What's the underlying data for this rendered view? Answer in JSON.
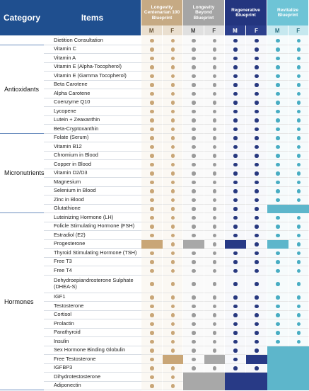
{
  "header": {
    "category": "Category",
    "items": "Items"
  },
  "columns": [
    {
      "title": "Longevity Centenarian 100 Blueprint",
      "sexes": [
        "M",
        "F"
      ]
    },
    {
      "title": "Longevity Beyond Blueprint",
      "sexes": [
        "M",
        "F"
      ]
    },
    {
      "title": "Regenerative Blueprint",
      "sexes": [
        "M",
        "F"
      ]
    },
    {
      "title": "Revitalize Blueprint",
      "sexes": [
        "M",
        "F"
      ]
    }
  ],
  "groups": [
    "Antioxidants",
    "Micronutrients",
    "Hormones"
  ],
  "items": [
    "Dietition Consultation",
    "Vitamin C",
    "Vitamin A",
    "Vitamin E (Alpha-Tocopherol)",
    "Vitamin E (Gamma Tocopherol)",
    "Beta Carotene",
    "Alpha Carotene",
    "Coenzyme Q10",
    "Lycopene",
    "Lutein + Zeaxanthin",
    "Beta-Cryptoxanthin",
    "Folate (Serum)",
    "Vitamin B12",
    "Chromium in Blood",
    "Copper in Blood",
    "Vitamin D2/D3",
    "Magnesium",
    "Selenium in Blood",
    "Zinc in Blood",
    "Glutathione",
    "Luteinizing Hormone (LH)",
    "Folicle Stimulating Hormone (FSH)",
    "Estradiol (E2)",
    "Progesterone",
    "Thyroid Stimulating Hormone (TSH)",
    "Free T3",
    "Free T4",
    "Dehydroepiandrosterone Sulphate (DHEA-S)",
    "IGF1",
    "Testosterone",
    "Cortisol",
    "Prolactin",
    "Parathyroid",
    "Insulin",
    "Sex Hormone Binding Globulin",
    "Free Testosterone",
    "IGFBP3",
    "Dihydrotestosterone",
    "Adiponectin"
  ]
}
